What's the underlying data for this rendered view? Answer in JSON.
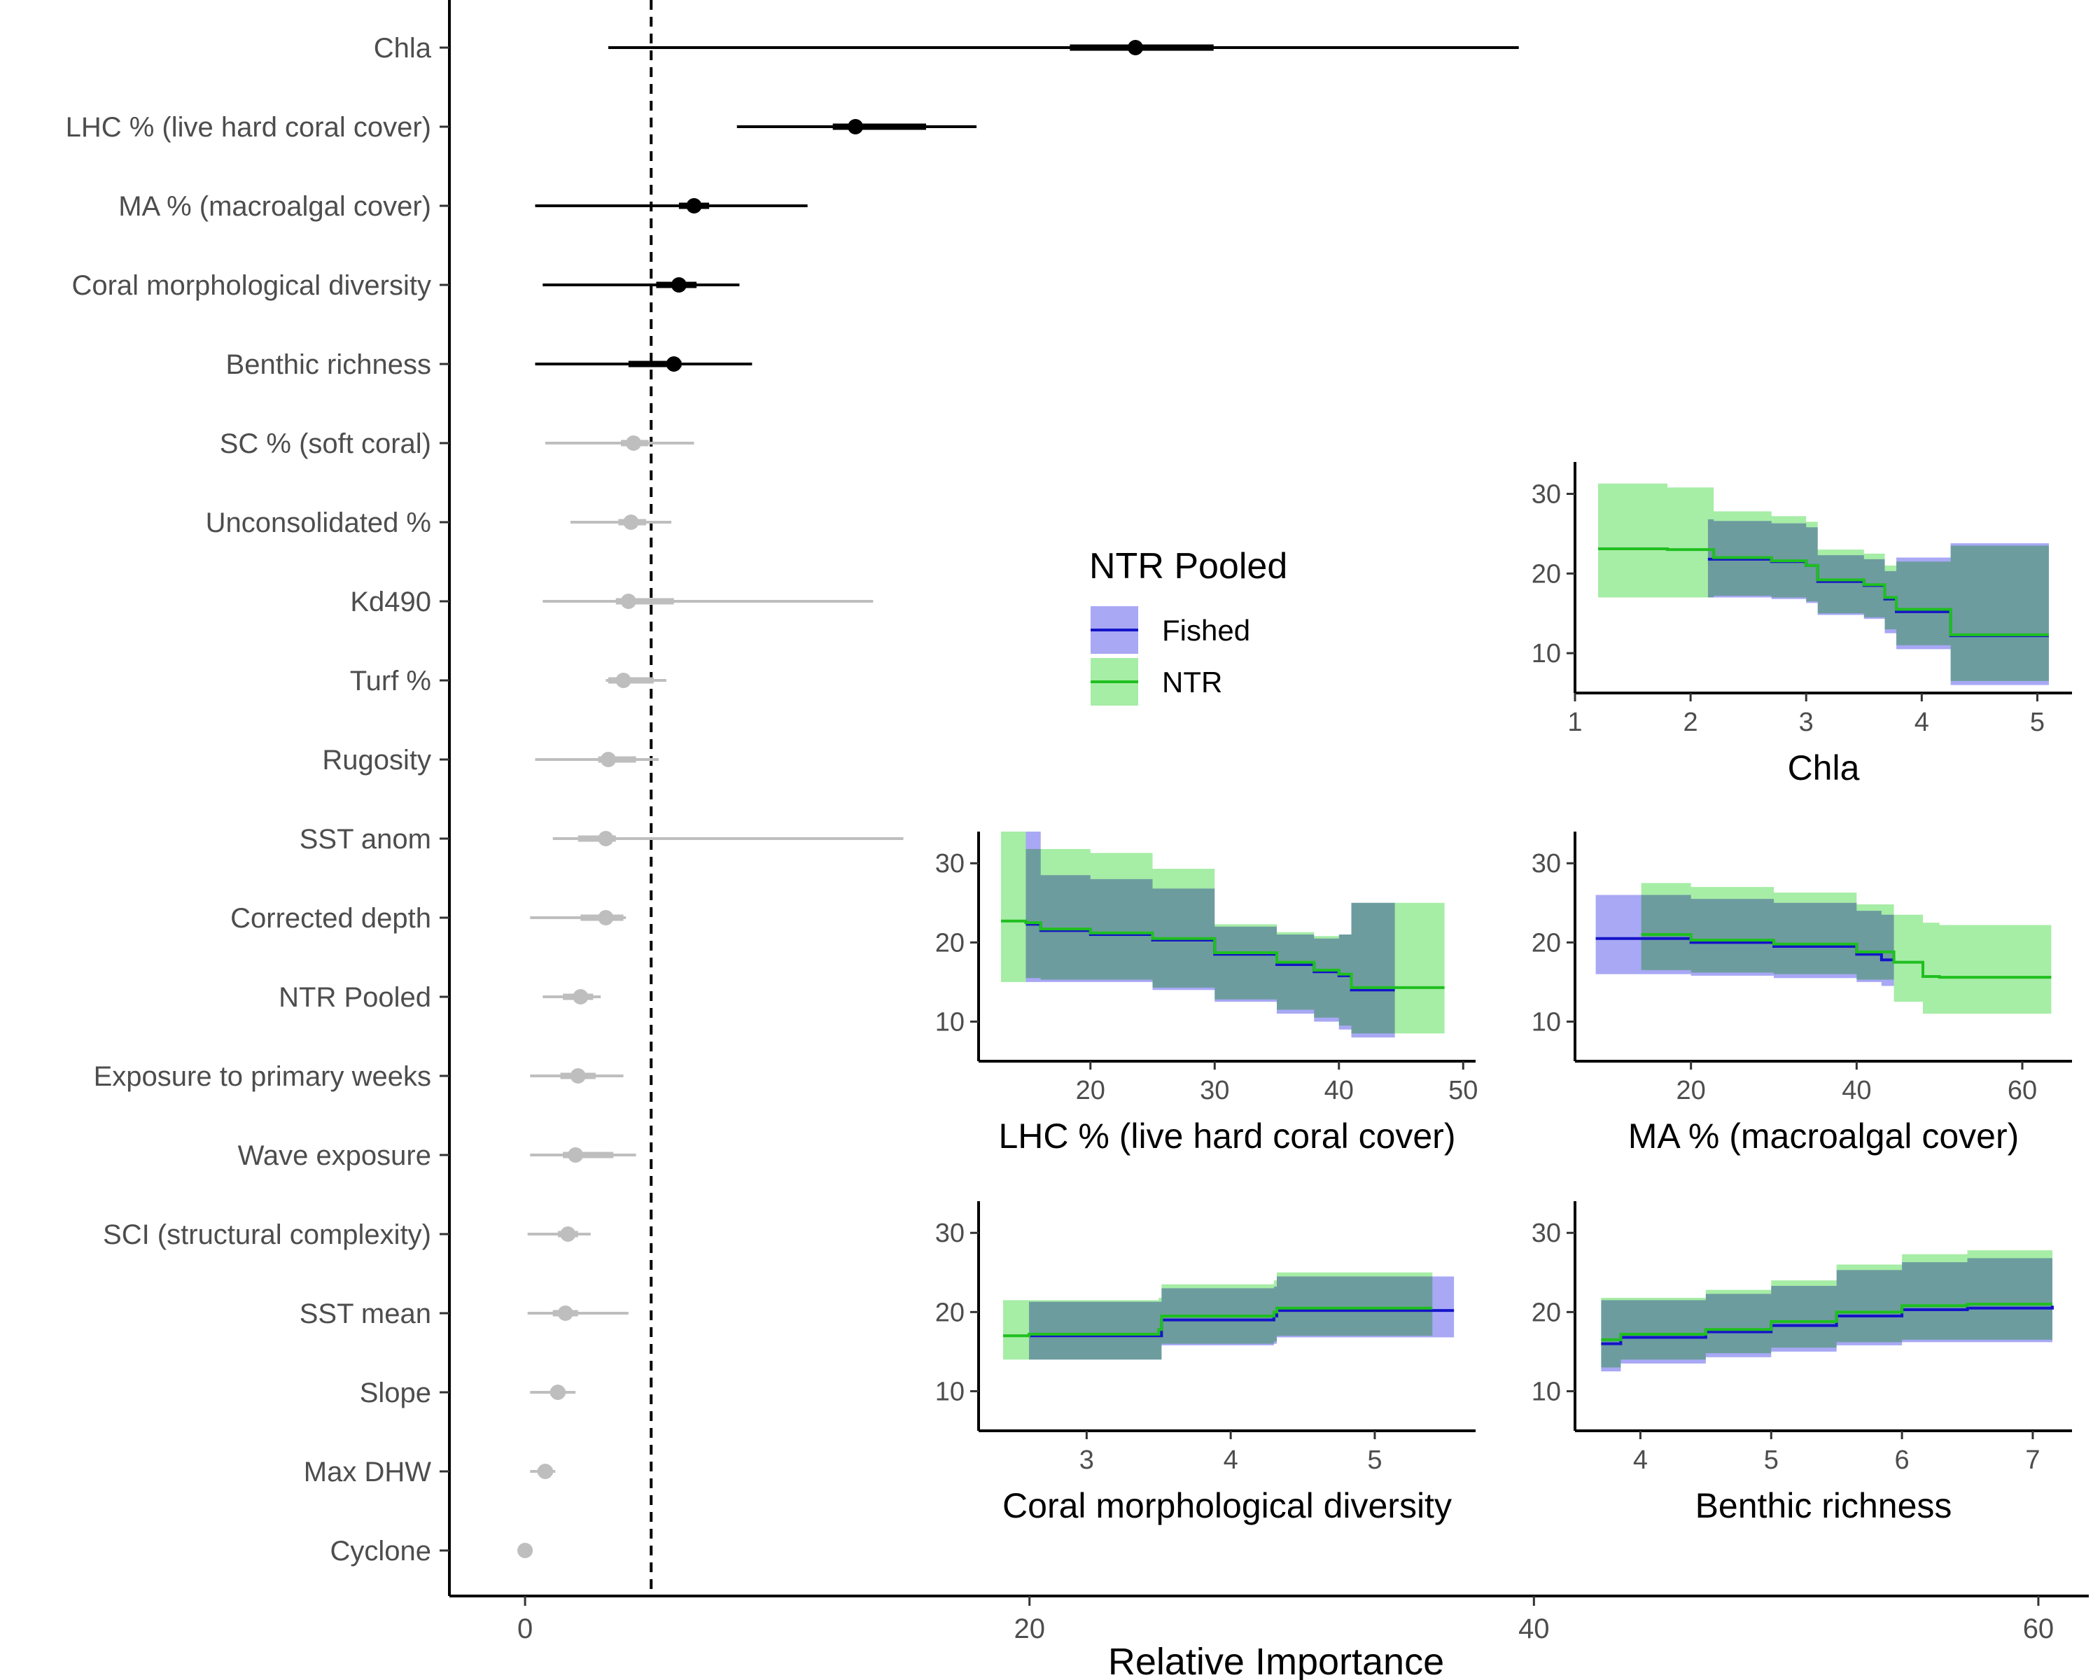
{
  "colors": {
    "significant": "#000000",
    "non_significant": "#bebebe",
    "fished_line": "#1414c8",
    "fished_fill": "#a8a8f5",
    "ntr_line": "#1fbf1f",
    "ntr_fill": "#a6eda6",
    "overlap_fill": "#70b0a8"
  },
  "chart_data": [
    {
      "id": "importance",
      "type": "dot-interval",
      "title": "",
      "xlabel": "Relative Importance",
      "ylabel": "",
      "xlim": [
        -3,
        62
      ],
      "xticks": [
        0,
        20,
        40,
        60
      ],
      "reference_line_x": 5,
      "reference_line_style": "dashed",
      "grid": false,
      "variables": [
        {
          "label": "Chla",
          "median": 24.2,
          "inner": [
            21.6,
            27.3
          ],
          "outer": [
            3.3,
            39.4
          ],
          "significant": true
        },
        {
          "label": "LHC % (live hard coral cover)",
          "median": 13.1,
          "inner": [
            12.2,
            15.9
          ],
          "outer": [
            8.4,
            17.9
          ],
          "significant": true
        },
        {
          "label": "MA % (macroalgal cover)",
          "median": 6.7,
          "inner": [
            6.1,
            7.3
          ],
          "outer": [
            0.4,
            11.2
          ],
          "significant": true
        },
        {
          "label": "Coral morphological diversity",
          "median": 6.1,
          "inner": [
            5.2,
            6.8
          ],
          "outer": [
            0.7,
            8.5
          ],
          "significant": true
        },
        {
          "label": "Benthic richness",
          "median": 5.9,
          "inner": [
            4.1,
            6.2
          ],
          "outer": [
            0.4,
            9.0
          ],
          "significant": true
        },
        {
          "label": "SC % (soft coral)",
          "median": 4.3,
          "inner": [
            3.8,
            4.9
          ],
          "outer": [
            0.8,
            6.7
          ],
          "significant": false
        },
        {
          "label": "Unconsolidated %",
          "median": 4.2,
          "inner": [
            3.7,
            4.8
          ],
          "outer": [
            1.8,
            5.8
          ],
          "significant": false
        },
        {
          "label": "Kd490",
          "median": 4.1,
          "inner": [
            3.6,
            5.9
          ],
          "outer": [
            0.7,
            13.8
          ],
          "significant": false
        },
        {
          "label": "Turf %",
          "median": 3.9,
          "inner": [
            3.3,
            5.1
          ],
          "outer": [
            3.2,
            5.6
          ],
          "significant": false
        },
        {
          "label": "Rugosity",
          "median": 3.3,
          "inner": [
            2.9,
            4.4
          ],
          "outer": [
            0.4,
            5.3
          ],
          "significant": false
        },
        {
          "label": "SST anom",
          "median": 3.2,
          "inner": [
            2.1,
            3.6
          ],
          "outer": [
            1.1,
            15.0
          ],
          "significant": false
        },
        {
          "label": "Corrected depth",
          "median": 3.2,
          "inner": [
            2.2,
            3.9
          ],
          "outer": [
            0.2,
            4.0
          ],
          "significant": false
        },
        {
          "label": "NTR Pooled",
          "median": 2.2,
          "inner": [
            1.5,
            2.7
          ],
          "outer": [
            0.7,
            3.0
          ],
          "significant": false
        },
        {
          "label": "Exposure to primary weeks",
          "median": 2.1,
          "inner": [
            1.4,
            2.8
          ],
          "outer": [
            0.2,
            3.9
          ],
          "significant": false
        },
        {
          "label": "Wave exposure",
          "median": 2.0,
          "inner": [
            1.5,
            3.5
          ],
          "outer": [
            0.2,
            4.4
          ],
          "significant": false
        },
        {
          "label": "SCI (structural complexity)",
          "median": 1.7,
          "inner": [
            1.3,
            2.1
          ],
          "outer": [
            0.1,
            2.6
          ],
          "significant": false
        },
        {
          "label": "SST mean",
          "median": 1.6,
          "inner": [
            1.1,
            2.1
          ],
          "outer": [
            0.1,
            4.1
          ],
          "significant": false
        },
        {
          "label": "Slope",
          "median": 1.3,
          "inner": [
            1.0,
            1.6
          ],
          "outer": [
            0.2,
            2.0
          ],
          "significant": false
        },
        {
          "label": "Max DHW",
          "median": 0.8,
          "inner": [
            0.5,
            1.1
          ],
          "outer": [
            0.2,
            1.2
          ],
          "significant": false
        },
        {
          "label": "Cyclone",
          "median": 0.0,
          "inner": [
            0.0,
            0.0
          ],
          "outer": [
            0.0,
            0.0
          ],
          "significant": false
        }
      ]
    },
    {
      "id": "pdp-chla",
      "type": "step-ribbon",
      "xlabel": "Chla",
      "xlim": [
        1,
        5.3
      ],
      "xticks": [
        1,
        2,
        3,
        4,
        5
      ],
      "ylim": [
        5,
        34
      ],
      "yticks": [
        10,
        20,
        30
      ],
      "series": [
        {
          "name": "Fished",
          "x": [
            2.15,
            2.2,
            2.7,
            3.0,
            3.1,
            3.5,
            3.68,
            3.78,
            4.25,
            5.1
          ],
          "y": [
            21.8,
            21.8,
            21.5,
            21.0,
            19.0,
            18.5,
            16.8,
            15.2,
            12.2,
            12.2
          ],
          "lower": [
            17.0,
            17.0,
            16.8,
            16.3,
            14.8,
            14.3,
            12.5,
            10.5,
            6.0,
            6.0
          ],
          "upper": [
            26.8,
            26.6,
            26.3,
            25.8,
            22.3,
            21.8,
            20.3,
            22.0,
            23.8,
            23.8
          ]
        },
        {
          "name": "NTR",
          "x": [
            1.2,
            1.8,
            2.2,
            2.7,
            3.0,
            3.1,
            3.5,
            3.68,
            3.78,
            4.25,
            5.1
          ],
          "y": [
            23.1,
            23.0,
            22.0,
            21.6,
            21.0,
            19.2,
            18.6,
            17.0,
            15.5,
            12.3,
            12.3
          ],
          "lower": [
            17.0,
            17.0,
            17.2,
            17.0,
            16.5,
            15.0,
            14.5,
            13.0,
            11.0,
            6.5,
            6.5
          ],
          "upper": [
            31.3,
            30.8,
            27.8,
            27.2,
            26.5,
            23.0,
            22.5,
            21.0,
            21.5,
            23.5,
            23.5
          ]
        }
      ]
    },
    {
      "id": "pdp-lhc",
      "type": "step-ribbon",
      "xlabel": "LHC % (live hard coral cover)",
      "xlim": [
        11,
        51
      ],
      "xticks": [
        20,
        30,
        40,
        50
      ],
      "ylim": [
        5,
        34
      ],
      "yticks": [
        10,
        20,
        30
      ],
      "series": [
        {
          "name": "Fished",
          "x": [
            14.8,
            16,
            20,
            25,
            30,
            35,
            38,
            40,
            41,
            44.5
          ],
          "y": [
            22.3,
            21.5,
            21.0,
            20.3,
            18.5,
            17.2,
            16.3,
            15.8,
            14.0,
            14.0
          ],
          "lower": [
            15.0,
            15.0,
            15.0,
            14.0,
            12.5,
            11.0,
            10.0,
            9.0,
            8.0,
            8.0
          ],
          "upper": [
            34.0,
            28.5,
            28.0,
            26.8,
            22.0,
            21.0,
            20.5,
            21.0,
            25.0,
            25.0
          ]
        },
        {
          "name": "NTR",
          "x": [
            12.8,
            14.8,
            16,
            20,
            25,
            30,
            35,
            38,
            40,
            41,
            44.5,
            48.5
          ],
          "y": [
            22.7,
            22.5,
            21.7,
            21.2,
            20.5,
            18.7,
            17.5,
            16.5,
            16.0,
            14.3,
            14.3,
            14.3
          ],
          "lower": [
            15.0,
            15.5,
            15.3,
            15.3,
            14.3,
            12.8,
            11.5,
            10.5,
            9.5,
            8.5,
            8.5,
            8.5
          ],
          "upper": [
            34.0,
            31.8,
            31.8,
            31.3,
            29.3,
            22.3,
            21.3,
            20.8,
            21.0,
            25.0,
            25.0,
            25.0
          ]
        }
      ]
    },
    {
      "id": "pdp-ma",
      "type": "step-ribbon",
      "xlabel": "MA % (macroalgal cover)",
      "xlim": [
        6,
        66
      ],
      "xticks": [
        20,
        40,
        60
      ],
      "ylim": [
        5,
        34
      ],
      "yticks": [
        10,
        20,
        30
      ],
      "series": [
        {
          "name": "Fished",
          "x": [
            8.5,
            14,
            20,
            30,
            40,
            43,
            44.5
          ],
          "y": [
            20.5,
            20.5,
            20.0,
            19.5,
            18.5,
            17.8,
            17.8
          ],
          "lower": [
            16.0,
            16.0,
            15.8,
            15.5,
            15.0,
            14.5,
            14.5
          ],
          "upper": [
            26.0,
            26.0,
            25.5,
            25.0,
            24.0,
            23.5,
            23.5
          ]
        },
        {
          "name": "NTR",
          "x": [
            14,
            20,
            30,
            40,
            44.5,
            48,
            50,
            63.5
          ],
          "y": [
            21.0,
            20.3,
            19.8,
            18.8,
            17.5,
            15.7,
            15.6,
            15.6
          ],
          "lower": [
            16.5,
            16.2,
            16.0,
            15.3,
            12.5,
            11.0,
            11.0,
            11.0
          ],
          "upper": [
            27.5,
            27.0,
            26.3,
            24.8,
            23.5,
            22.5,
            22.2,
            22.2
          ]
        }
      ]
    },
    {
      "id": "pdp-coral-morph",
      "type": "step-ribbon",
      "xlabel": "Coral morphological diversity",
      "xlim": [
        2.25,
        5.7
      ],
      "xticks": [
        3,
        4,
        5
      ],
      "ylim": [
        5,
        34
      ],
      "yticks": [
        10,
        20,
        30
      ],
      "series": [
        {
          "name": "Fished",
          "x": [
            2.6,
            3.5,
            3.52,
            4.3,
            4.32,
            5.4,
            5.55
          ],
          "y": [
            17.0,
            17.0,
            19.0,
            19.5,
            20.2,
            20.2,
            20.2
          ],
          "lower": [
            14.0,
            14.0,
            15.8,
            16.0,
            16.8,
            16.8,
            16.8
          ],
          "upper": [
            21.3,
            21.3,
            23.0,
            23.2,
            24.5,
            24.5,
            24.5
          ]
        },
        {
          "name": "NTR",
          "x": [
            2.42,
            2.6,
            3.5,
            3.52,
            4.3,
            4.32,
            5.4
          ],
          "y": [
            17.0,
            17.2,
            17.8,
            19.5,
            20.0,
            20.5,
            20.5
          ],
          "lower": [
            14.0,
            14.0,
            14.0,
            16.0,
            16.3,
            17.0,
            17.0
          ],
          "upper": [
            21.5,
            21.5,
            21.8,
            23.5,
            24.0,
            25.0,
            25.0
          ]
        }
      ]
    },
    {
      "id": "pdp-benthic",
      "type": "step-ribbon",
      "xlabel": "Benthic richness",
      "xlim": [
        3.5,
        7.3
      ],
      "xticks": [
        4,
        5,
        6,
        7
      ],
      "ylim": [
        5,
        34
      ],
      "yticks": [
        10,
        20,
        30
      ],
      "series": [
        {
          "name": "Fished",
          "x": [
            3.7,
            3.85,
            4.5,
            5.0,
            5.5,
            6.0,
            6.5,
            7.15
          ],
          "y": [
            16.0,
            16.8,
            17.5,
            18.3,
            19.5,
            20.3,
            20.5,
            20.8
          ],
          "lower": [
            12.5,
            13.5,
            14.3,
            15.0,
            15.8,
            16.2,
            16.2,
            16.2
          ],
          "upper": [
            21.5,
            21.5,
            22.3,
            23.3,
            25.3,
            26.3,
            26.8,
            26.8
          ]
        },
        {
          "name": "NTR",
          "x": [
            3.7,
            3.85,
            4.5,
            5.0,
            5.5,
            6.0,
            6.5,
            7.15
          ],
          "y": [
            16.5,
            17.2,
            17.8,
            18.8,
            20.0,
            20.8,
            21.0,
            21.0
          ],
          "lower": [
            13.0,
            14.0,
            14.8,
            15.5,
            16.2,
            16.5,
            16.5,
            16.5
          ],
          "upper": [
            21.8,
            21.8,
            22.8,
            24.0,
            26.0,
            27.3,
            27.8,
            27.8
          ]
        }
      ]
    }
  ],
  "legend": {
    "title": "NTR Pooled",
    "items": [
      {
        "name": "Fished",
        "line": "#1414c8",
        "fill": "#a8a8f5"
      },
      {
        "name": "NTR",
        "line": "#1fbf1f",
        "fill": "#a6eda6"
      }
    ]
  }
}
